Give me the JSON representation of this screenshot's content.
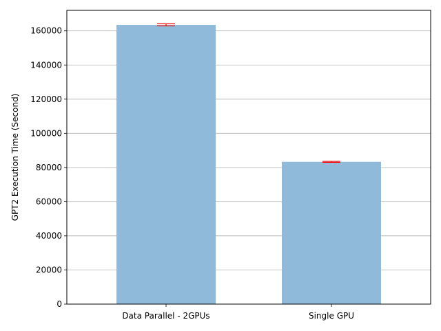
{
  "chart_data": {
    "type": "bar",
    "title": "",
    "xlabel": "",
    "ylabel": "GPT2 Execution Time (Second)",
    "categories": [
      "Data Parallel - 2GPUs",
      "Single GPU"
    ],
    "values": [
      163500,
      83300
    ],
    "errors": [
      600,
      300
    ],
    "ylim": [
      0,
      172000
    ],
    "yticks": [
      0,
      20000,
      40000,
      60000,
      80000,
      100000,
      120000,
      140000,
      160000
    ],
    "ytick_labels": [
      "0",
      "20000",
      "40000",
      "60000",
      "80000",
      "100000",
      "120000",
      "140000",
      "160000"
    ],
    "grid": "y",
    "colors": {
      "bar": "#8fbad9",
      "error": "#ff0000",
      "grid": "#b0b0b0",
      "axis": "#000000"
    }
  }
}
